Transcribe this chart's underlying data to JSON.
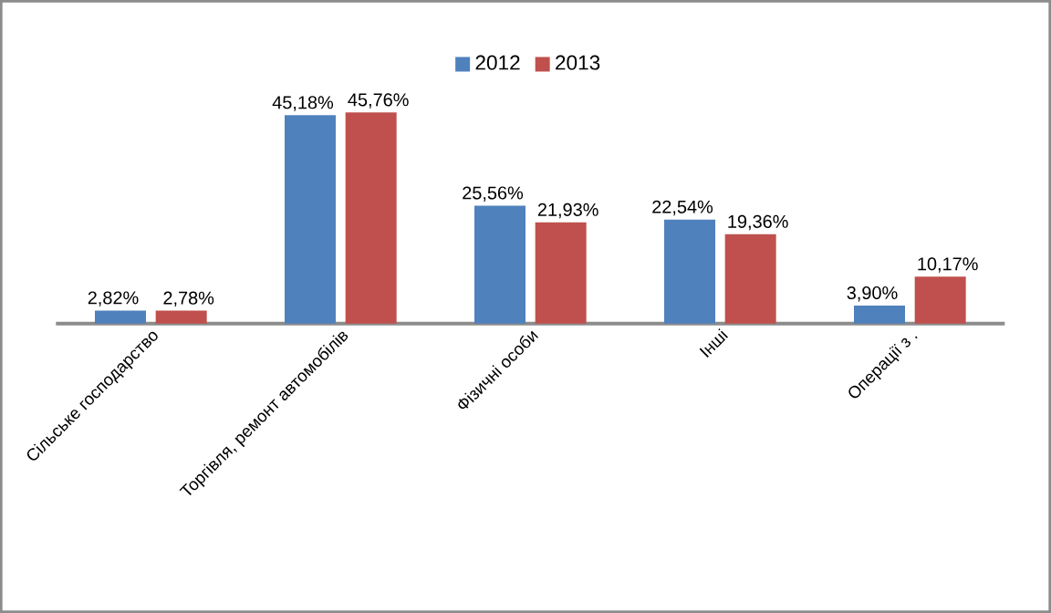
{
  "chart_data": {
    "type": "bar",
    "categories": [
      "Сільське господарство",
      "Торгівля, ремонт автомобілів",
      "Фізичні особи",
      "Інші",
      "Операції з ."
    ],
    "series": [
      {
        "name": "2012",
        "color": "#4f81bd",
        "values": [
          2.82,
          45.18,
          25.56,
          22.54,
          3.9
        ],
        "value_labels": [
          "2,82%",
          "45,18%",
          "25,56%",
          "22,54%",
          "3,90%"
        ]
      },
      {
        "name": "2013",
        "color": "#c0504d",
        "values": [
          2.78,
          45.76,
          21.93,
          19.36,
          10.17
        ],
        "value_labels": [
          "2,78%",
          "45,76%",
          "21,93%",
          "19,36%",
          "10,17%"
        ]
      }
    ],
    "legend": "top"
  }
}
